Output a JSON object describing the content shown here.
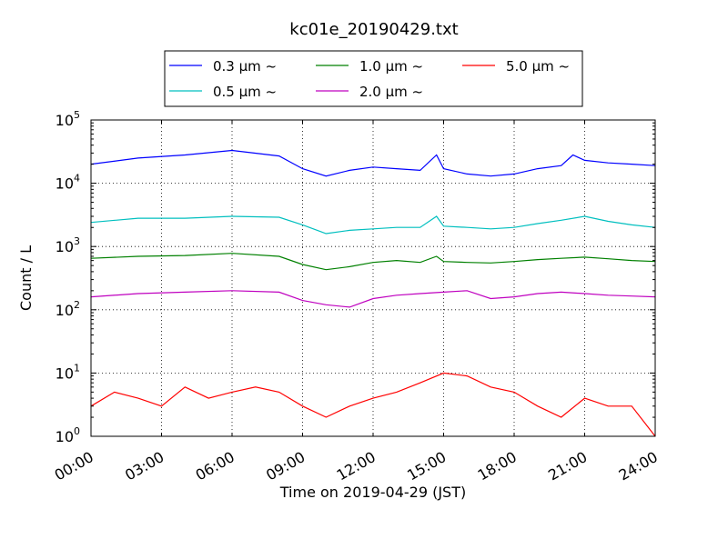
{
  "chart_data": {
    "type": "line",
    "title": "kc01e_20190429.txt",
    "xlabel": "Time on 2019-04-29 (JST)",
    "ylabel": "Count / L",
    "x_tick_labels": [
      "00:00",
      "03:00",
      "06:00",
      "09:00",
      "12:00",
      "15:00",
      "18:00",
      "21:00",
      "24:00"
    ],
    "x_tick_hours": [
      0,
      3,
      6,
      9,
      12,
      15,
      18,
      21,
      24
    ],
    "xlim_hours": [
      0,
      24
    ],
    "ylim": [
      1,
      100000
    ],
    "yscale": "log",
    "y_tick_labels": [
      {
        "base": "10",
        "exp": "0"
      },
      {
        "base": "10",
        "exp": "1"
      },
      {
        "base": "10",
        "exp": "2"
      },
      {
        "base": "10",
        "exp": "3"
      },
      {
        "base": "10",
        "exp": "4"
      },
      {
        "base": "10",
        "exp": "5"
      }
    ],
    "y_tick_values": [
      1,
      10,
      100,
      1000,
      10000,
      100000
    ],
    "grid": true,
    "legend_position": "top-center",
    "series": [
      {
        "name": "0.3 μm  ~",
        "color": "#0000ff",
        "x": [
          0,
          2,
          4,
          6,
          8,
          9,
          10,
          11,
          12,
          13,
          14,
          14.7,
          15,
          16,
          17,
          18,
          19,
          20,
          20.5,
          21,
          22,
          23,
          24
        ],
        "y": [
          20000,
          25000,
          28000,
          33000,
          27000,
          17000,
          13000,
          16000,
          18000,
          17000,
          16000,
          28000,
          17000,
          14000,
          13000,
          14000,
          17000,
          19000,
          28000,
          23000,
          21000,
          20000,
          19000
        ]
      },
      {
        "name": "0.5 μm  ~",
        "color": "#00bfbf",
        "x": [
          0,
          2,
          4,
          6,
          8,
          9,
          10,
          11,
          12,
          13,
          14,
          14.7,
          15,
          16,
          17,
          18,
          19,
          20,
          21,
          22,
          23,
          24
        ],
        "y": [
          2400,
          2800,
          2800,
          3000,
          2900,
          2200,
          1600,
          1800,
          1900,
          2000,
          2000,
          3000,
          2100,
          2000,
          1900,
          2000,
          2300,
          2600,
          3000,
          2500,
          2200,
          2000
        ]
      },
      {
        "name": "1.0 μm  ~",
        "color": "#008000",
        "x": [
          0,
          2,
          4,
          6,
          8,
          9,
          10,
          11,
          12,
          13,
          14,
          14.7,
          15,
          16,
          17,
          18,
          19,
          20,
          21,
          22,
          23,
          24
        ],
        "y": [
          650,
          700,
          720,
          780,
          700,
          520,
          430,
          480,
          560,
          600,
          560,
          700,
          580,
          560,
          550,
          580,
          620,
          650,
          680,
          640,
          600,
          580
        ]
      },
      {
        "name": "2.0 μm  ~",
        "color": "#bf00bf",
        "x": [
          0,
          2,
          4,
          6,
          8,
          9,
          10,
          11,
          12,
          13,
          14,
          15,
          16,
          17,
          18,
          19,
          20,
          21,
          22,
          23,
          24
        ],
        "y": [
          160,
          180,
          190,
          200,
          190,
          140,
          120,
          110,
          150,
          170,
          180,
          190,
          200,
          150,
          160,
          180,
          190,
          180,
          170,
          165,
          160
        ]
      },
      {
        "name": "5.0 μm  ~",
        "color": "#ff0000",
        "x": [
          0,
          1,
          2,
          3,
          4,
          5,
          6,
          7,
          8,
          9,
          10,
          11,
          12,
          13,
          14,
          15,
          16,
          17,
          18,
          19,
          20,
          21,
          22,
          23,
          24
        ],
        "y": [
          3,
          5,
          4,
          3,
          6,
          4,
          5,
          6,
          5,
          3,
          2,
          3,
          4,
          5,
          7,
          10,
          9,
          6,
          5,
          3,
          2,
          4,
          3,
          3,
          1
        ]
      }
    ]
  }
}
